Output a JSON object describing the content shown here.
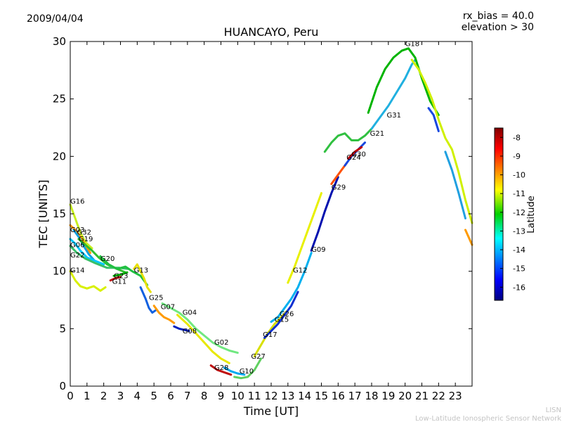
{
  "header": {
    "date": "2009/04/04",
    "bias_line": "rx_bias = 40.0",
    "elevation_line": "elevation > 30"
  },
  "footer": {
    "short": "LISN",
    "long": "Low-Latitude Ionospheric Sensor Network"
  },
  "chart_data": {
    "type": "scatter",
    "title": "HUANCAYO, Peru",
    "xlabel": "Time [UT]",
    "ylabel": "TEC [UNITS]",
    "xlim": [
      0,
      24
    ],
    "ylim": [
      0,
      30
    ],
    "xticks": [
      "0",
      "1",
      "2",
      "3",
      "4",
      "5",
      "6",
      "7",
      "8",
      "9",
      "10",
      "11",
      "12",
      "13",
      "14",
      "15",
      "16",
      "17",
      "18",
      "19",
      "20",
      "21",
      "22",
      "23"
    ],
    "yticks": [
      "0",
      "5",
      "10",
      "15",
      "20",
      "25",
      "30"
    ],
    "grid": false,
    "colormap": "jet",
    "colorbar": {
      "label": "Latitude",
      "range": [
        -16.7,
        -7.5
      ],
      "ticks": [
        "-8",
        "-9",
        "-10",
        "-11",
        "-12",
        "-13",
        "-14",
        "-15",
        "-16"
      ]
    },
    "series": [
      {
        "name": "G16",
        "color": "#c8ef20",
        "points": [
          [
            0,
            15.8
          ],
          [
            0.2,
            15.0
          ],
          [
            0.4,
            14.2
          ],
          [
            0.6,
            13.4
          ],
          [
            0.8,
            12.8
          ],
          [
            1.0,
            12.4
          ],
          [
            1.3,
            12.0
          ]
        ]
      },
      {
        "name": "G03",
        "color": "#ff9a00",
        "points": [
          [
            0,
            14.0
          ],
          [
            0.3,
            13.6
          ],
          [
            0.6,
            13.0
          ],
          [
            0.9,
            12.3
          ],
          [
            1.2,
            11.6
          ]
        ]
      },
      {
        "name": "G32",
        "color": "#10a0e0",
        "points": [
          [
            0.2,
            13.6
          ],
          [
            0.5,
            13.0
          ],
          [
            0.8,
            12.2
          ],
          [
            1.1,
            11.5
          ],
          [
            1.4,
            11.0
          ]
        ]
      },
      {
        "name": "G19",
        "color": "#30c030",
        "points": [
          [
            0.5,
            12.8
          ],
          [
            0.9,
            12.3
          ],
          [
            1.3,
            11.8
          ],
          [
            1.7,
            11.2
          ],
          [
            2.2,
            10.6
          ],
          [
            2.8,
            10.2
          ],
          [
            3.3,
            9.9
          ]
        ]
      },
      {
        "name": "G06",
        "color": "#00c8ff",
        "points": [
          [
            0,
            12.8
          ],
          [
            0.3,
            12.4
          ],
          [
            0.6,
            11.8
          ],
          [
            1.0,
            11.2
          ],
          [
            1.5,
            10.9
          ],
          [
            2.0,
            10.6
          ]
        ]
      },
      {
        "name": "G22",
        "color": "#38c068",
        "points": [
          [
            0,
            12.2
          ],
          [
            0.4,
            11.6
          ],
          [
            0.9,
            11.1
          ],
          [
            1.5,
            10.7
          ],
          [
            2.2,
            10.3
          ],
          [
            2.9,
            10.3
          ],
          [
            3.5,
            10.2
          ]
        ]
      },
      {
        "name": "G14",
        "color": "#d8f000",
        "points": [
          [
            0,
            10.0
          ],
          [
            0.3,
            9.2
          ],
          [
            0.6,
            8.7
          ],
          [
            1.0,
            8.5
          ],
          [
            1.4,
            8.7
          ],
          [
            1.8,
            8.3
          ],
          [
            2.1,
            8.6
          ]
        ]
      },
      {
        "name": "G20",
        "color": "#20c040",
        "points": [
          [
            1.8,
            11.3
          ],
          [
            2.3,
            10.6
          ],
          [
            2.8,
            10.2
          ],
          [
            3.3,
            10.4
          ],
          [
            3.7,
            10.0
          ],
          [
            4.2,
            9.6
          ],
          [
            4.6,
            8.8
          ]
        ]
      },
      {
        "name": "G13",
        "color": "#e8e000",
        "points": [
          [
            3.8,
            10.2
          ],
          [
            4.0,
            10.6
          ],
          [
            4.2,
            10.0
          ],
          [
            4.4,
            9.4
          ],
          [
            4.6,
            8.6
          ],
          [
            4.8,
            8.2
          ]
        ]
      },
      {
        "name": "G23",
        "color": "#00b000",
        "points": [
          [
            2.6,
            9.6
          ],
          [
            3.0,
            9.7
          ],
          [
            3.4,
            9.9
          ]
        ]
      },
      {
        "name": "G11",
        "color": "#c01010",
        "points": [
          [
            2.4,
            9.2
          ],
          [
            2.7,
            9.4
          ],
          [
            3.0,
            9.5
          ]
        ]
      },
      {
        "name": "G25",
        "color": "#1060e0",
        "points": [
          [
            4.2,
            8.6
          ],
          [
            4.5,
            7.6
          ],
          [
            4.7,
            6.8
          ],
          [
            4.9,
            6.4
          ],
          [
            5.1,
            6.6
          ]
        ]
      },
      {
        "name": "G07",
        "color": "#ff9a00",
        "points": [
          [
            5.0,
            7.0
          ],
          [
            5.3,
            6.4
          ],
          [
            5.6,
            6.0
          ],
          [
            5.9,
            5.8
          ],
          [
            6.2,
            5.5
          ]
        ]
      },
      {
        "name": "G04",
        "color": "#70e880",
        "points": [
          [
            5.5,
            7.2
          ],
          [
            6.0,
            6.8
          ],
          [
            6.5,
            6.4
          ],
          [
            7.0,
            5.8
          ],
          [
            7.5,
            5.0
          ],
          [
            8.0,
            4.4
          ],
          [
            8.5,
            3.8
          ],
          [
            9.0,
            3.4
          ],
          [
            9.5,
            3.1
          ],
          [
            10.0,
            2.9
          ]
        ]
      },
      {
        "name": "G08",
        "color": "#0020c0",
        "points": [
          [
            6.2,
            5.2
          ],
          [
            6.5,
            5.0
          ],
          [
            6.8,
            4.9
          ],
          [
            7.1,
            4.8
          ]
        ]
      },
      {
        "name": "G02",
        "color": "#e8e800",
        "points": [
          [
            6.4,
            6.2
          ],
          [
            7.0,
            5.4
          ],
          [
            7.5,
            4.6
          ],
          [
            8.0,
            3.8
          ],
          [
            8.5,
            3.0
          ],
          [
            9.0,
            2.4
          ],
          [
            9.5,
            2.0
          ]
        ]
      },
      {
        "name": "G28",
        "color": "#c01010",
        "points": [
          [
            8.4,
            1.8
          ],
          [
            8.8,
            1.4
          ],
          [
            9.2,
            1.2
          ],
          [
            9.6,
            1.0
          ]
        ]
      },
      {
        "name": "G10",
        "color": "#00a8f0",
        "points": [
          [
            9.2,
            1.6
          ],
          [
            9.6,
            1.3
          ],
          [
            10.0,
            1.1
          ],
          [
            10.4,
            1.0
          ]
        ]
      },
      {
        "name": "G27",
        "color": "#60d060",
        "points": [
          [
            9.8,
            0.8
          ],
          [
            10.2,
            0.7
          ],
          [
            10.6,
            0.8
          ],
          [
            11.0,
            1.4
          ],
          [
            11.4,
            2.4
          ]
        ]
      },
      {
        "name": "G17",
        "color": "#d8e000",
        "points": [
          [
            11.0,
            2.6
          ],
          [
            11.4,
            3.6
          ],
          [
            11.8,
            4.6
          ],
          [
            12.2,
            5.4
          ],
          [
            12.6,
            6.0
          ],
          [
            13.0,
            6.6
          ]
        ]
      },
      {
        "name": "G15",
        "color": "#1030d0",
        "points": [
          [
            11.6,
            4.2
          ],
          [
            12.0,
            4.8
          ],
          [
            12.4,
            5.4
          ],
          [
            12.8,
            6.2
          ],
          [
            13.2,
            7.0
          ],
          [
            13.6,
            8.2
          ]
        ]
      },
      {
        "name": "G26",
        "color": "#00b0f0",
        "points": [
          [
            12.0,
            5.6
          ],
          [
            12.4,
            6.0
          ],
          [
            12.8,
            6.8
          ],
          [
            13.2,
            7.6
          ],
          [
            13.6,
            8.6
          ],
          [
            14.0,
            10.0
          ],
          [
            14.4,
            11.6
          ]
        ]
      },
      {
        "name": "G12",
        "color": "#e8f000",
        "points": [
          [
            13.0,
            9.0
          ],
          [
            13.4,
            10.4
          ],
          [
            13.8,
            12.0
          ],
          [
            14.2,
            13.6
          ],
          [
            14.6,
            15.2
          ],
          [
            15.0,
            16.8
          ]
        ]
      },
      {
        "name": "G09",
        "color": "#0010b0",
        "points": [
          [
            14.4,
            11.8
          ],
          [
            14.8,
            13.4
          ],
          [
            15.2,
            15.2
          ],
          [
            15.6,
            16.8
          ],
          [
            16.0,
            18.2
          ]
        ]
      },
      {
        "name": "G29",
        "color": "#ff5000",
        "points": [
          [
            15.6,
            17.6
          ],
          [
            15.9,
            18.2
          ],
          [
            16.2,
            18.8
          ],
          [
            16.5,
            19.4
          ]
        ]
      },
      {
        "name": "G24",
        "color": "#1848e0",
        "points": [
          [
            16.4,
            19.2
          ],
          [
            16.8,
            20.0
          ],
          [
            17.2,
            20.6
          ],
          [
            17.6,
            21.2
          ]
        ]
      },
      {
        "name": "G30",
        "color": "#c00000",
        "points": [
          [
            16.6,
            19.8
          ],
          [
            17.0,
            20.4
          ],
          [
            17.4,
            20.8
          ]
        ]
      },
      {
        "name": "G21",
        "color": "#30c040",
        "points": [
          [
            15.2,
            20.4
          ],
          [
            15.6,
            21.2
          ],
          [
            16.0,
            21.8
          ],
          [
            16.4,
            22.0
          ],
          [
            16.8,
            21.4
          ],
          [
            17.2,
            21.4
          ],
          [
            17.6,
            21.8
          ],
          [
            18.0,
            22.4
          ]
        ]
      },
      {
        "name": "G31",
        "color": "#20b0e0",
        "points": [
          [
            18.0,
            22.4
          ],
          [
            18.5,
            23.4
          ],
          [
            19.0,
            24.4
          ],
          [
            19.5,
            25.6
          ],
          [
            20.0,
            26.8
          ],
          [
            20.4,
            28.0
          ],
          [
            20.6,
            28.4
          ]
        ]
      },
      {
        "name": "G18",
        "color": "#00b400",
        "points": [
          [
            17.8,
            23.8
          ],
          [
            18.3,
            26.0
          ],
          [
            18.8,
            27.6
          ],
          [
            19.3,
            28.6
          ],
          [
            19.8,
            29.2
          ],
          [
            20.2,
            29.4
          ],
          [
            20.6,
            28.6
          ],
          [
            21.0,
            26.8
          ],
          [
            21.5,
            24.8
          ],
          [
            22.0,
            23.6
          ]
        ]
      },
      {
        "name": "",
        "color": "#d0f000",
        "points": [
          [
            20.4,
            28.4
          ],
          [
            20.8,
            27.6
          ],
          [
            21.2,
            26.4
          ],
          [
            21.6,
            25.0
          ],
          [
            22.0,
            23.2
          ],
          [
            22.4,
            21.6
          ],
          [
            22.8,
            20.6
          ],
          [
            23.2,
            18.6
          ],
          [
            23.6,
            16.2
          ],
          [
            24.0,
            14.2
          ]
        ]
      },
      {
        "name": "",
        "color": "#1848e0",
        "points": [
          [
            21.4,
            24.2
          ],
          [
            21.7,
            23.6
          ],
          [
            22.0,
            22.2
          ]
        ]
      },
      {
        "name": "",
        "color": "#20a0e0",
        "points": [
          [
            22.4,
            20.4
          ],
          [
            22.8,
            18.8
          ],
          [
            23.2,
            16.8
          ],
          [
            23.6,
            14.6
          ]
        ]
      },
      {
        "name": "",
        "color": "#ff9a00",
        "points": [
          [
            23.6,
            13.6
          ],
          [
            24.0,
            12.3
          ]
        ]
      }
    ],
    "labels": [
      {
        "text": "G16",
        "x": 0.0,
        "y": 15.9
      },
      {
        "text": "G03",
        "x": 0.0,
        "y": 13.4
      },
      {
        "text": "G32",
        "x": 0.4,
        "y": 13.2
      },
      {
        "text": "G19",
        "x": 0.5,
        "y": 12.6
      },
      {
        "text": "G06",
        "x": 0.0,
        "y": 12.1
      },
      {
        "text": "G22",
        "x": 0.0,
        "y": 11.2
      },
      {
        "text": "G14",
        "x": 0.0,
        "y": 9.9
      },
      {
        "text": "G20",
        "x": 1.8,
        "y": 10.9
      },
      {
        "text": "G13",
        "x": 3.8,
        "y": 9.9
      },
      {
        "text": "G23",
        "x": 2.6,
        "y": 9.4
      },
      {
        "text": "G11",
        "x": 2.5,
        "y": 8.9
      },
      {
        "text": "G25",
        "x": 4.7,
        "y": 7.5
      },
      {
        "text": "G07",
        "x": 5.4,
        "y": 6.7
      },
      {
        "text": "G04",
        "x": 6.7,
        "y": 6.2
      },
      {
        "text": "G08",
        "x": 6.7,
        "y": 4.6
      },
      {
        "text": "G02",
        "x": 8.6,
        "y": 3.6
      },
      {
        "text": "G28",
        "x": 8.6,
        "y": 1.4
      },
      {
        "text": "G10",
        "x": 10.1,
        "y": 1.1
      },
      {
        "text": "G27",
        "x": 10.8,
        "y": 2.4
      },
      {
        "text": "G17",
        "x": 11.5,
        "y": 4.3
      },
      {
        "text": "G15",
        "x": 12.2,
        "y": 5.6
      },
      {
        "text": "G26",
        "x": 12.5,
        "y": 6.1
      },
      {
        "text": "G12",
        "x": 13.3,
        "y": 9.9
      },
      {
        "text": "G09",
        "x": 14.4,
        "y": 11.7
      },
      {
        "text": "G29",
        "x": 15.6,
        "y": 17.1
      },
      {
        "text": "G24",
        "x": 16.5,
        "y": 19.7
      },
      {
        "text": "G30",
        "x": 16.8,
        "y": 20.0
      },
      {
        "text": "G21",
        "x": 17.9,
        "y": 21.8
      },
      {
        "text": "G31",
        "x": 18.9,
        "y": 23.4
      },
      {
        "text": "G18",
        "x": 20.0,
        "y": 29.6
      }
    ]
  }
}
